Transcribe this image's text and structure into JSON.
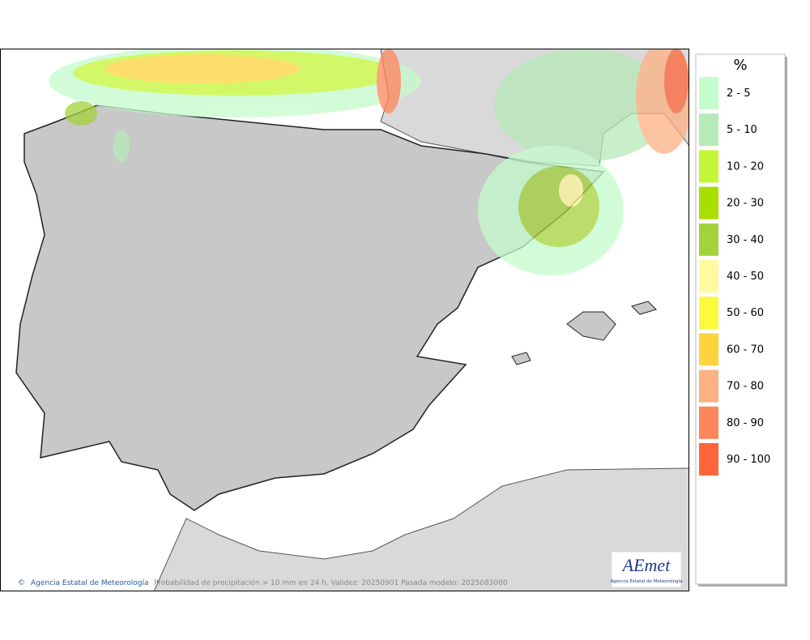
{
  "legend": {
    "title": "%",
    "items": [
      {
        "label": "2 - 5",
        "color": "#c4fccb"
      },
      {
        "label": "5 - 10",
        "color": "#b6eab8"
      },
      {
        "label": "10 - 20",
        "color": "#c4f636"
      },
      {
        "label": "20 - 30",
        "color": "#a8df00"
      },
      {
        "label": "30 - 40",
        "color": "#a3d23c"
      },
      {
        "label": "40 - 50",
        "color": "#fffa9e"
      },
      {
        "label": "50 - 60",
        "color": "#fcfa3c"
      },
      {
        "label": "60 - 70",
        "color": "#fdd43c"
      },
      {
        "label": "70 - 80",
        "color": "#fdb183"
      },
      {
        "label": "80 - 90",
        "color": "#fd875a"
      },
      {
        "label": "90 - 100",
        "color": "#fd6638"
      }
    ]
  },
  "footer": {
    "copyright": "Agencia Estatal de Meteorología",
    "caption": "Probabilidad de precipitación > 10 mm en 24 h. Validez: 20250901 Pasada modelo: 2025083000"
  },
  "logo": {
    "name": "AEmet",
    "subtitle": "Agencia Estatal de Meteorología"
  }
}
